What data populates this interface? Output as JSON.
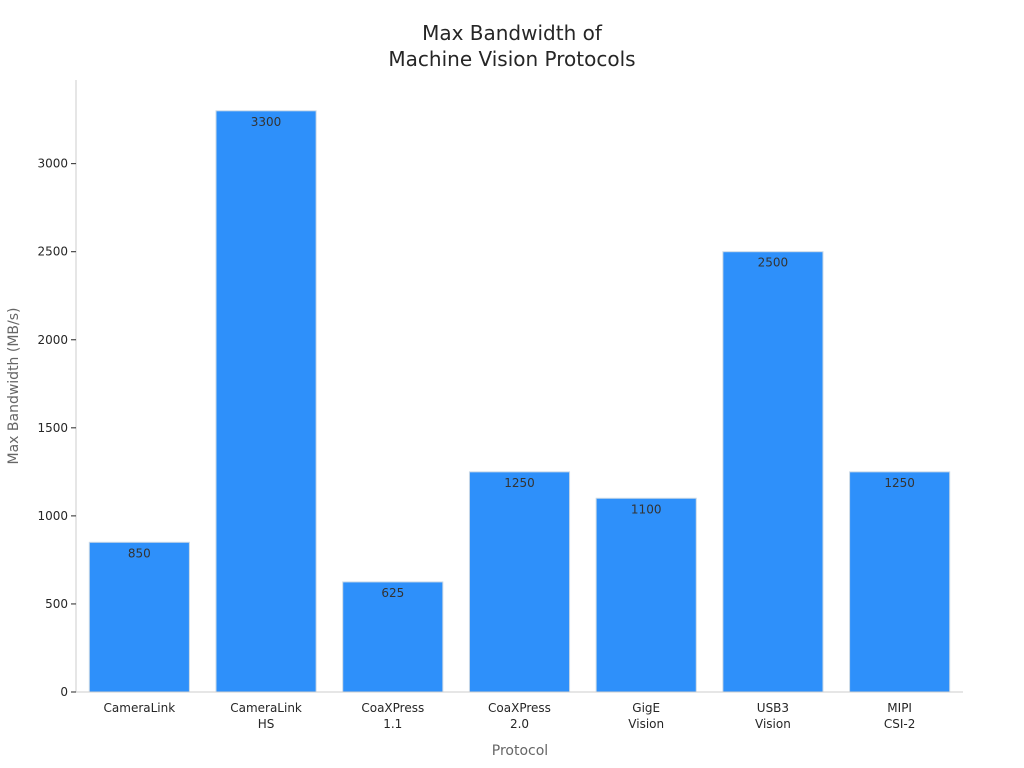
{
  "chart_data": {
    "type": "bar",
    "title_lines": [
      "Max Bandwidth of",
      "Machine Vision Protocols"
    ],
    "xlabel": "Protocol",
    "ylabel": "Max Bandwidth (MB/s)",
    "categories": [
      [
        "CameraLink"
      ],
      [
        "CameraLink",
        "HS"
      ],
      [
        "CoaXPress",
        "1.1"
      ],
      [
        "CoaXPress",
        "2.0"
      ],
      [
        "GigE",
        "Vision"
      ],
      [
        "USB3",
        "Vision"
      ],
      [
        "MIPI",
        "CSI-2"
      ]
    ],
    "values": [
      850,
      3300,
      625,
      1250,
      1100,
      2500,
      1250
    ],
    "ylim": [
      0,
      3475
    ],
    "yticks": [
      0,
      500,
      1000,
      1500,
      2000,
      2500,
      3000
    ],
    "grid": false,
    "bar_color": "#2e90fa",
    "bar_edge_color": "#c9d8e6",
    "axis_color": "#cccccc"
  }
}
